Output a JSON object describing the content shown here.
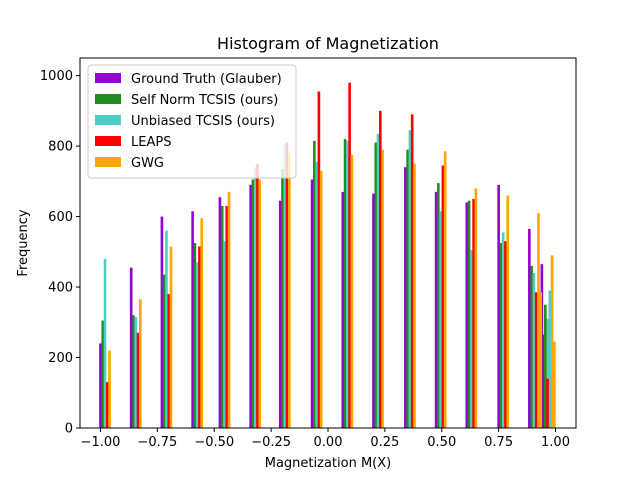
{
  "chart_data": {
    "type": "bar",
    "title": "Histogram of Magnetization",
    "xlabel": "Magnetization M(X)",
    "ylabel": "Frequency",
    "xlim": [
      -1.09,
      1.09
    ],
    "ylim": [
      0,
      1050
    ],
    "xticks": [
      -1.0,
      -0.75,
      -0.5,
      -0.25,
      0.0,
      0.25,
      0.5,
      0.75,
      1.0
    ],
    "xtick_labels": [
      "−1.00",
      "−0.75",
      "−0.50",
      "−0.25",
      "0.00",
      "0.25",
      "0.50",
      "0.75",
      "1.00"
    ],
    "yticks": [
      0,
      200,
      400,
      600,
      800,
      1000
    ],
    "ytick_labels": [
      "0",
      "200",
      "400",
      "600",
      "800",
      "1000"
    ],
    "bin_centers": [
      -0.985,
      -0.85,
      -0.71,
      -0.585,
      -0.46,
      -0.32,
      -0.185,
      -0.05,
      0.085,
      0.22,
      0.36,
      0.495,
      0.635,
      0.77,
      0.905,
      0.965
    ],
    "bar_width": 0.0085,
    "series": [
      {
        "name": "Ground Truth (Glauber)",
        "color": "#9400D3",
        "x": [
          -1.0,
          -0.865,
          -0.73,
          -0.595,
          -0.475,
          -0.34,
          -0.21,
          -0.07,
          0.065,
          0.2,
          0.34,
          0.475,
          0.61,
          0.75,
          0.885,
          0.94
        ],
        "values": [
          240,
          455,
          600,
          615,
          655,
          690,
          645,
          705,
          670,
          665,
          740,
          670,
          640,
          690,
          565,
          465
        ]
      },
      {
        "name": "Self Norm TCSIS (ours)",
        "color": "#228B22",
        "x": [
          -0.99,
          -0.855,
          -0.72,
          -0.585,
          -0.465,
          -0.33,
          -0.2,
          -0.06,
          0.075,
          0.21,
          0.35,
          0.485,
          0.62,
          0.76,
          0.895,
          0.955
        ],
        "values": [
          305,
          320,
          435,
          525,
          630,
          705,
          735,
          815,
          820,
          810,
          790,
          695,
          645,
          525,
          460,
          335
        ]
      },
      {
        "name": "Unbiased TCSIS (ours)",
        "color": "#4ECDC4",
        "x": [
          -0.98,
          -0.845,
          -0.71,
          -0.575,
          -0.455,
          -0.32,
          -0.19,
          -0.05,
          0.085,
          0.22,
          0.36,
          0.495,
          0.63,
          0.77,
          0.905,
          0.965
        ],
        "values": [
          480,
          315,
          560,
          470,
          530,
          740,
          805,
          755,
          815,
          835,
          845,
          615,
          505,
          555,
          440,
          310
        ]
      },
      {
        "name": "LEAPS",
        "color": "#FF0000",
        "x": [
          -0.97,
          -0.835,
          -0.7,
          -0.565,
          -0.445,
          -0.31,
          -0.18,
          -0.04,
          0.095,
          0.23,
          0.37,
          0.505,
          0.64,
          0.78,
          0.915,
          0.975
        ],
        "values": [
          130,
          270,
          380,
          515,
          630,
          750,
          810,
          955,
          980,
          900,
          890,
          745,
          650,
          530,
          385,
          260
        ]
      },
      {
        "name": "GWG",
        "color": "#FFA500",
        "x": [
          -0.96,
          -0.825,
          -0.69,
          -0.555,
          -0.435,
          -0.3,
          -0.17,
          -0.03,
          0.105,
          0.24,
          0.38,
          0.515,
          0.65,
          0.79,
          0.925,
          0.985
        ],
        "values": [
          220,
          365,
          515,
          595,
          670,
          705,
          780,
          730,
          775,
          790,
          750,
          785,
          680,
          660,
          610,
          490
        ]
      }
    ],
    "legend": {
      "placement": "top-left"
    }
  },
  "extra_bars": {
    "note": "Rightmost bins",
    "items": [
      {
        "series": 0,
        "x": 0.945,
        "value": 265
      },
      {
        "series": 1,
        "x": 0.955,
        "value": 350
      },
      {
        "series": 2,
        "x": 0.975,
        "value": 390
      },
      {
        "series": 3,
        "x": 0.965,
        "value": 140
      },
      {
        "series": 4,
        "x": 0.995,
        "value": 245
      },
      {
        "series": 4,
        "x": 0.935,
        "value": 385
      }
    ]
  }
}
